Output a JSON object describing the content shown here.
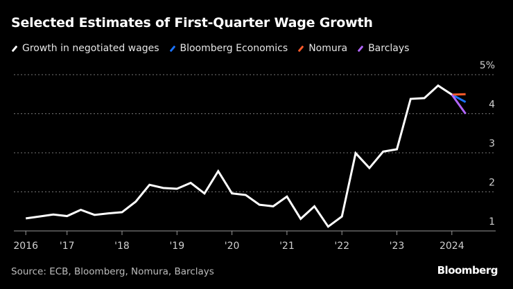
{
  "chart_data": {
    "type": "line",
    "title": "Selected Estimates of First-Quarter Wage Growth",
    "source": "Source: ECB, Bloomberg, Nomura, Barclays",
    "brand": "Bloomberg",
    "legend_placement": "top-left",
    "grid": true,
    "ylim": [
      1,
      5
    ],
    "y_ticks": [
      "1",
      "2",
      "3",
      "4",
      "5%"
    ],
    "x_ticks": [
      {
        "label": "2016",
        "x": 2016.25
      },
      {
        "label": "'17",
        "x": 2017
      },
      {
        "label": "'18",
        "x": 2018
      },
      {
        "label": "'19",
        "x": 2019
      },
      {
        "label": "'20",
        "x": 2020
      },
      {
        "label": "'21",
        "x": 2021
      },
      {
        "label": "'22",
        "x": 2022
      },
      {
        "label": "'23",
        "x": 2023
      },
      {
        "label": "2024",
        "x": 2024
      }
    ],
    "xlim": [
      2016.25,
      2024.75
    ],
    "series": [
      {
        "name": "Growth in negotiated wages",
        "color": "#ffffff",
        "x": [
          "2016Q2",
          "2016Q3",
          "2016Q4",
          "2017Q1",
          "2017Q2",
          "2017Q3",
          "2017Q4",
          "2018Q1",
          "2018Q2",
          "2018Q3",
          "2018Q4",
          "2019Q1",
          "2019Q2",
          "2019Q3",
          "2019Q4",
          "2020Q1",
          "2020Q2",
          "2020Q3",
          "2020Q4",
          "2021Q1",
          "2021Q2",
          "2021Q3",
          "2021Q4",
          "2022Q1",
          "2022Q2",
          "2022Q3",
          "2022Q4",
          "2023Q1",
          "2023Q2",
          "2023Q3",
          "2023Q4",
          "2024Q1"
        ],
        "values": [
          1.32,
          1.37,
          1.42,
          1.38,
          1.54,
          1.41,
          1.45,
          1.48,
          1.75,
          2.18,
          2.1,
          2.08,
          2.23,
          1.96,
          2.53,
          1.96,
          1.92,
          1.67,
          1.63,
          1.88,
          1.31,
          1.63,
          1.11,
          1.37,
          2.99,
          2.61,
          3.03,
          3.09,
          4.38,
          4.4,
          4.72,
          4.49
        ]
      },
      {
        "name": "Bloomberg Economics",
        "color": "#1a73ff",
        "x": [
          "2024Q1",
          "2024Q2"
        ],
        "values": [
          4.49,
          4.3
        ]
      },
      {
        "name": "Nomura",
        "color": "#ff5a2a",
        "x": [
          "2024Q1",
          "2024Q2"
        ],
        "values": [
          4.49,
          4.5
        ]
      },
      {
        "name": "Barclays",
        "color": "#b266ff",
        "x": [
          "2024Q1",
          "2024Q2"
        ],
        "values": [
          4.49,
          4.0
        ]
      }
    ]
  }
}
